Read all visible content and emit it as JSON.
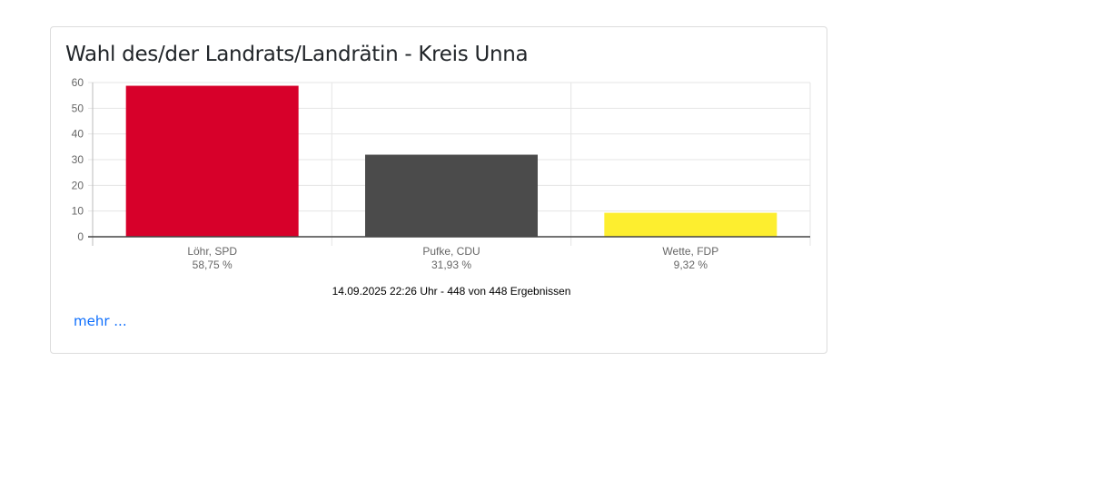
{
  "card": {
    "title": "Wahl des/der Landrats/Landrätin - Kreis Unna",
    "more_link": "mehr ..."
  },
  "chart_data": {
    "type": "bar",
    "title": "Wahl des/der Landrats/Landrätin - Kreis Unna",
    "categories": [
      "Löhr, SPD",
      "Pufke, CDU",
      "Wette, FDP"
    ],
    "value_labels": [
      "58,75 %",
      "31,93 %",
      "9,32 %"
    ],
    "values": [
      58.75,
      31.93,
      9.32
    ],
    "colors": [
      "#d7002a",
      "#4b4b4b",
      "#fdee2f"
    ],
    "ylim": [
      0,
      60
    ],
    "yticks": [
      0,
      10,
      20,
      30,
      40,
      50,
      60
    ],
    "grid": true,
    "footer": "14.09.2025 22:26 Uhr - 448 von 448 Ergebnissen"
  }
}
